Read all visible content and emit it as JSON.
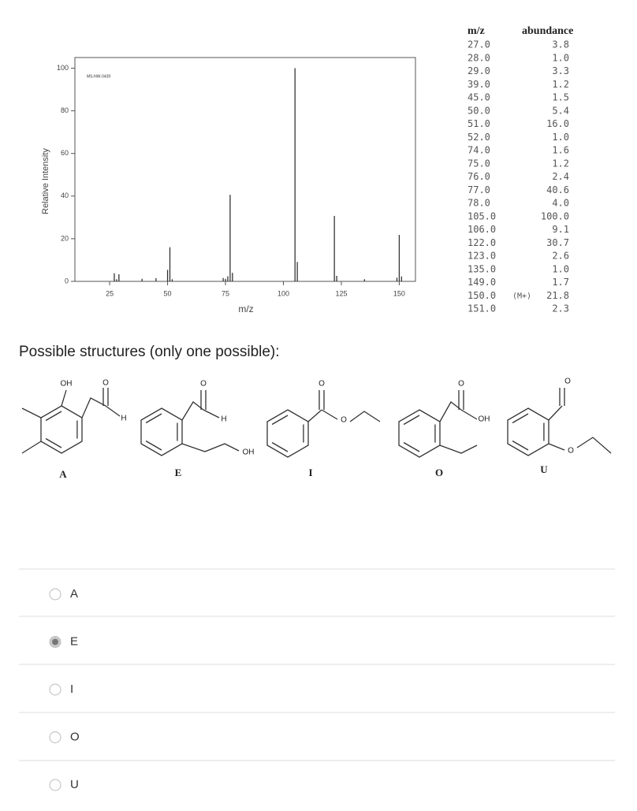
{
  "spectrum": {
    "type": "bar",
    "tag": "MS-NW-0439",
    "ylabel": "Relative Intensity",
    "xlabel": "m/z",
    "x": [
      27,
      28,
      29,
      39,
      45,
      50,
      51,
      52,
      74,
      75,
      76,
      77,
      78,
      105,
      106,
      122,
      123,
      135,
      149,
      150,
      151
    ],
    "values": [
      3.8,
      1.0,
      3.3,
      1.2,
      1.5,
      5.4,
      16.0,
      1.0,
      1.6,
      1.2,
      2.4,
      40.6,
      4.0,
      100.0,
      9.1,
      30.7,
      2.6,
      1.0,
      1.7,
      21.8,
      2.3
    ],
    "color": "#333333",
    "xlim": [
      10,
      157
    ],
    "ylim": [
      0,
      105
    ],
    "xticks": [
      25,
      50,
      75,
      100,
      125,
      150
    ],
    "yticks": [
      0,
      20,
      40,
      60,
      80,
      100
    ]
  },
  "table": {
    "columns": [
      "m/z",
      "abundance"
    ],
    "rows": [
      {
        "mz": "27.0",
        "abundance": "3.8"
      },
      {
        "mz": "28.0",
        "abundance": "1.0"
      },
      {
        "mz": "29.0",
        "abundance": "3.3"
      },
      {
        "mz": "39.0",
        "abundance": "1.2"
      },
      {
        "mz": "45.0",
        "abundance": "1.5"
      },
      {
        "mz": "50.0",
        "abundance": "5.4"
      },
      {
        "mz": "51.0",
        "abundance": "16.0"
      },
      {
        "mz": "52.0",
        "abundance": "1.0"
      },
      {
        "mz": "74.0",
        "abundance": "1.6"
      },
      {
        "mz": "75.0",
        "abundance": "1.2"
      },
      {
        "mz": "76.0",
        "abundance": "2.4"
      },
      {
        "mz": "77.0",
        "abundance": "40.6"
      },
      {
        "mz": "78.0",
        "abundance": "4.0"
      },
      {
        "mz": "105.0",
        "abundance": "100.0"
      },
      {
        "mz": "106.0",
        "abundance": "9.1"
      },
      {
        "mz": "122.0",
        "abundance": "30.7"
      },
      {
        "mz": "123.0",
        "abundance": "2.6"
      },
      {
        "mz": "135.0",
        "abundance": "1.0"
      },
      {
        "mz": "149.0",
        "abundance": "1.7"
      },
      {
        "mz": "150.0",
        "note": "(M+)",
        "abundance": "21.8"
      },
      {
        "mz": "151.0",
        "abundance": "2.3"
      }
    ]
  },
  "question": "Possible structures (only one possible):",
  "structures": [
    {
      "label": "A",
      "atoms": [
        "OH",
        "O",
        "H"
      ]
    },
    {
      "label": "E",
      "atoms": [
        "O",
        "H",
        "OH"
      ]
    },
    {
      "label": "I",
      "atoms": [
        "O",
        "O"
      ]
    },
    {
      "label": "O",
      "atoms": [
        "O",
        "OH"
      ]
    },
    {
      "label": "U",
      "atoms": [
        "O",
        "O"
      ]
    }
  ],
  "options": [
    "A",
    "E",
    "I",
    "O",
    "U"
  ],
  "selected": 1
}
